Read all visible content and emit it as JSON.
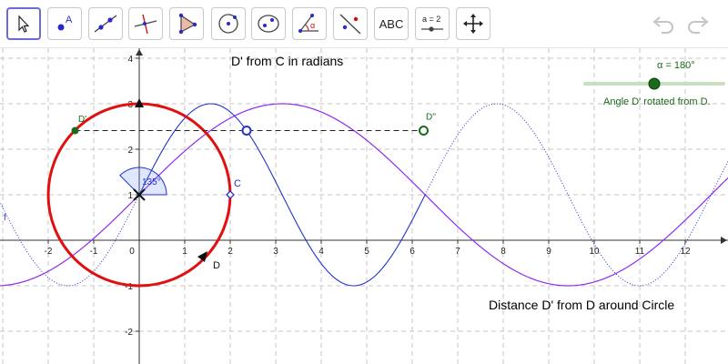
{
  "toolbar": {
    "tools": [
      {
        "name": "move-tool",
        "label": ""
      },
      {
        "name": "point-tool",
        "label": "A"
      },
      {
        "name": "line-tool",
        "label": ""
      },
      {
        "name": "perpendicular-line-tool",
        "label": ""
      },
      {
        "name": "polygon-tool",
        "label": ""
      },
      {
        "name": "circle-center-point-tool",
        "label": ""
      },
      {
        "name": "conic-ellipse-tool",
        "label": ""
      },
      {
        "name": "angle-tool",
        "label": "α"
      },
      {
        "name": "reflect-tool",
        "label": ""
      },
      {
        "name": "text-tool",
        "label": "ABC"
      },
      {
        "name": "slider-tool",
        "label": "a = 2"
      },
      {
        "name": "move-graphics-view-tool",
        "label": ""
      }
    ],
    "selected_tool": "move-tool",
    "undo_icon": "undo-icon",
    "redo_icon": "redo-icon"
  },
  "graphics": {
    "x_ticks": [
      "-2",
      "-1",
      "0",
      "1",
      "2",
      "3",
      "4",
      "5",
      "6",
      "7",
      "8",
      "9",
      "10",
      "11",
      "12"
    ],
    "y_ticks": [
      "-2",
      "-1",
      "1",
      "2",
      "3",
      "4"
    ],
    "title_radians": "D' from C in radians",
    "title_distance": "Distance D' from D around Circle",
    "slider": {
      "value_label": "α = 180°",
      "caption": "Angle D' rotated from D.",
      "value_deg": 180,
      "range_deg": [
        0,
        360
      ]
    },
    "angle_label": "135°",
    "point_labels": {
      "D_prime": "D'",
      "D_double_prime": "D''",
      "C": "C",
      "D": "D",
      "f": "f"
    },
    "colors": {
      "circle": "#e01010",
      "blue_curve": "#2233cc",
      "purple_curve": "#8f2cf0",
      "point_green": "#1a6b1a",
      "slider_track": "#c8e0c0",
      "title_blue": "#1a1ad8",
      "title_purple": "#9a27d8"
    }
  }
}
